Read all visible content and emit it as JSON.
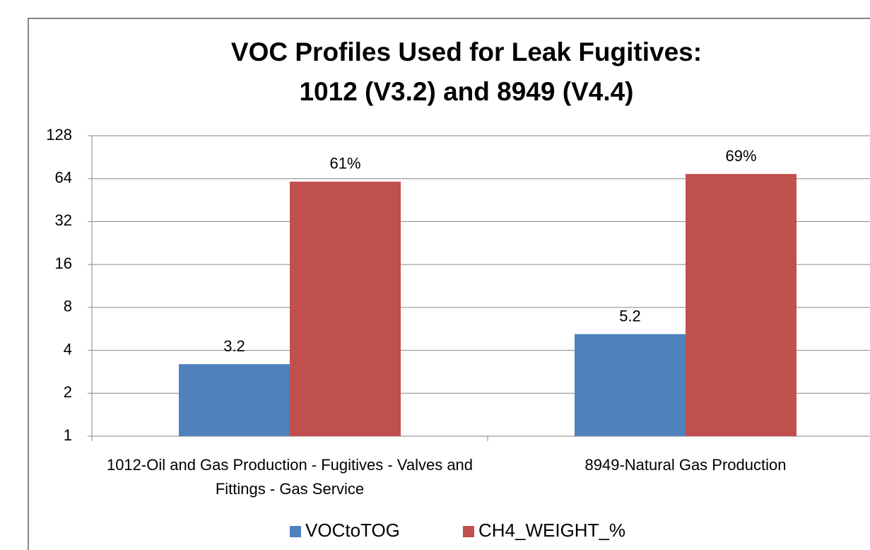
{
  "chart_data": {
    "type": "bar",
    "title": [
      "VOC Profiles Used for Leak Fugitives:",
      "1012  (V3.2) and 8949 (V4.4)"
    ],
    "categories": [
      "1012-Oil and Gas Production - Fugitives - Valves and Fittings - Gas Service",
      "8949-Natural Gas Production"
    ],
    "series": [
      {
        "name": "VOCtoTOG",
        "color": "#4f81bd",
        "values": [
          3.2,
          5.2
        ]
      },
      {
        "name": "CH4_WEIGHT_%",
        "color": "#c0504d",
        "values": [
          61,
          69
        ],
        "value_labels": [
          "61%",
          "69%"
        ]
      }
    ],
    "ylim": [
      1,
      128
    ],
    "yticks": [
      1,
      2,
      4,
      8,
      16,
      32,
      64,
      128
    ],
    "yscale": "log",
    "grid": true,
    "legend": "bottom"
  }
}
